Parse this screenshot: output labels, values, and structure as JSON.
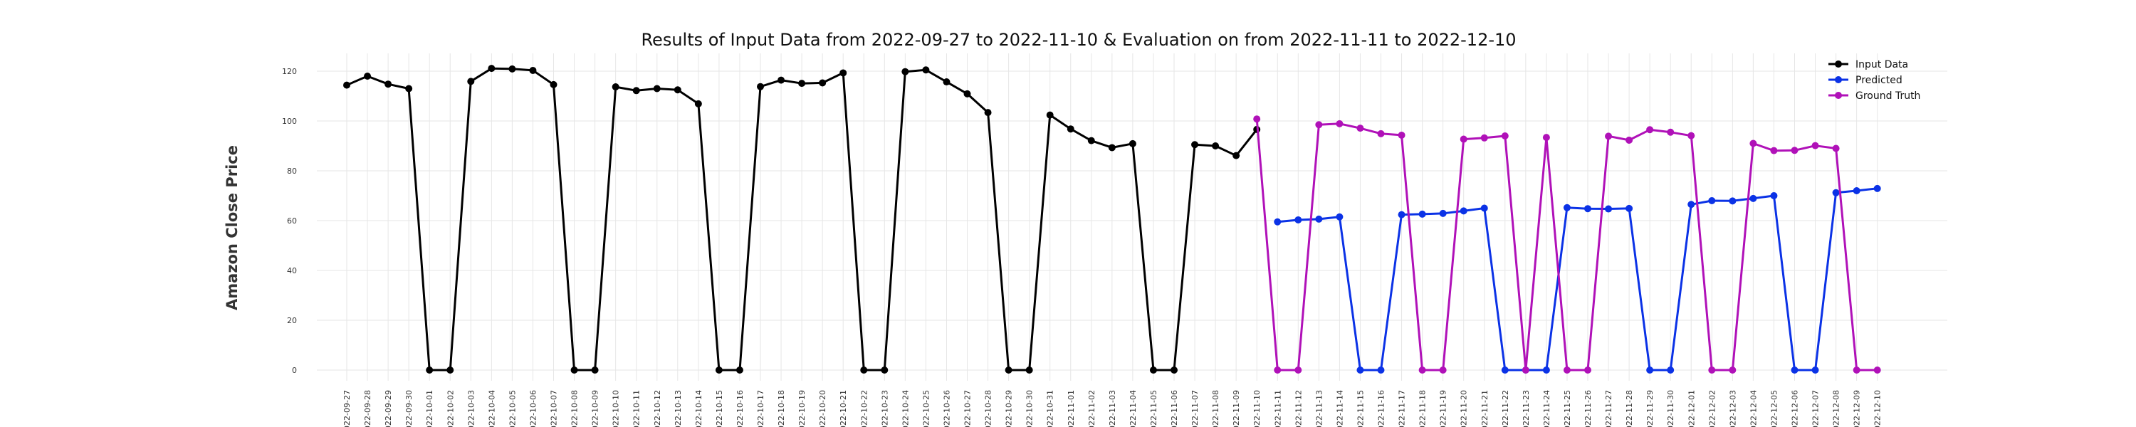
{
  "chart_data": {
    "type": "line",
    "title": "Results of Input Data from 2022-09-27 to 2022-11-10 & Evaluation on from 2022-11-11 to 2022-12-10",
    "ylabel": "Amazon Close Price",
    "xlabel": "",
    "ylim": [
      -5,
      127
    ],
    "yticks": [
      0,
      20,
      40,
      60,
      80,
      100,
      120
    ],
    "grid": true,
    "legend_position": "top-right",
    "dates": [
      "2022-09-27",
      "2022-09-28",
      "2022-09-29",
      "2022-09-30",
      "2022-10-01",
      "2022-10-02",
      "2022-10-03",
      "2022-10-04",
      "2022-10-05",
      "2022-10-06",
      "2022-10-07",
      "2022-10-08",
      "2022-10-09",
      "2022-10-10",
      "2022-10-11",
      "2022-10-12",
      "2022-10-13",
      "2022-10-14",
      "2022-10-15",
      "2022-10-16",
      "2022-10-17",
      "2022-10-18",
      "2022-10-19",
      "2022-10-20",
      "2022-10-21",
      "2022-10-22",
      "2022-10-23",
      "2022-10-24",
      "2022-10-25",
      "2022-10-26",
      "2022-10-27",
      "2022-10-28",
      "2022-10-29",
      "2022-10-30",
      "2022-10-31",
      "2022-11-01",
      "2022-11-02",
      "2022-11-03",
      "2022-11-04",
      "2022-11-05",
      "2022-11-06",
      "2022-11-07",
      "2022-11-08",
      "2022-11-09",
      "2022-11-10",
      "2022-11-11",
      "2022-11-12",
      "2022-11-13",
      "2022-11-14",
      "2022-11-15",
      "2022-11-16",
      "2022-11-17",
      "2022-11-18",
      "2022-11-19",
      "2022-11-20",
      "2022-11-21",
      "2022-11-22",
      "2022-11-23",
      "2022-11-24",
      "2022-11-25",
      "2022-11-26",
      "2022-11-27",
      "2022-11-28",
      "2022-11-29",
      "2022-11-30",
      "2022-12-01",
      "2022-12-02",
      "2022-12-03",
      "2022-12-04",
      "2022-12-05",
      "2022-12-06",
      "2022-12-07",
      "2022-12-08",
      "2022-12-09",
      "2022-12-10"
    ],
    "tick_labels": [
      "2022-09-27",
      "2022-09-28",
      "2022-09-29",
      "2022-09-30",
      "2022-10-01",
      "2022-10-02",
      "2022-10-03",
      "2022-10-04",
      "2022-10-05",
      "2022-10-06",
      "2022-10-07",
      "2022-10-08",
      "2022-10-09",
      "2022-10-10",
      "2022-10-11",
      "2022-10-12",
      "2022-10-13",
      "2022-10-14",
      "2022-10-15",
      "2022-10-16",
      "2022-10-17",
      "2022-10-18",
      "2022-10-19",
      "2022-10-20",
      "2022-10-21",
      "2022-10-22",
      "2022-10-23",
      "2022-10-24",
      "2022-10-25",
      "2022-10-26",
      "2022-10-27",
      "2022-10-28",
      "2022-10-29",
      "2022-10-30",
      "2022-10-31",
      "2022-11-01",
      "2022-11-02",
      "2022-11-03",
      "2022-11-04",
      "2022-11-05",
      "2022-11-06",
      "2022-11-07",
      "2022-11-08",
      "2022-11-09",
      "2022-11-10",
      "2022-11-11",
      "2022-11-12",
      "2022-11-13",
      "2022-11-14",
      "2022-11-15",
      "2022-11-16",
      "2022-11-17",
      "2022-11-18",
      "2022-11-19",
      "2022-11-20",
      "2022-11-21",
      "2022-11-22",
      "2022-11-23",
      "2022-11-24",
      "2022-11-25",
      "2022-11-26",
      "2022-11-27",
      "2022-11-28",
      "2022-11-29",
      "2022-11-30",
      "2022-12-01",
      "2022-12-02",
      "2022-12-03",
      "2022-12-04",
      "2022-12-05",
      "2022-12-06",
      "2022-12-07",
      "2022-12-08",
      "2022-12-09",
      "2022-12-10"
    ],
    "series": [
      {
        "name": "Input Data",
        "color": "#000000",
        "x": [
          "2022-09-27",
          "2022-09-28",
          "2022-09-29",
          "2022-09-30",
          "2022-10-01",
          "2022-10-02",
          "2022-10-03",
          "2022-10-04",
          "2022-10-05",
          "2022-10-06",
          "2022-10-07",
          "2022-10-08",
          "2022-10-09",
          "2022-10-10",
          "2022-10-11",
          "2022-10-12",
          "2022-10-13",
          "2022-10-14",
          "2022-10-15",
          "2022-10-16",
          "2022-10-17",
          "2022-10-18",
          "2022-10-19",
          "2022-10-20",
          "2022-10-21",
          "2022-10-22",
          "2022-10-23",
          "2022-10-24",
          "2022-10-25",
          "2022-10-26",
          "2022-10-27",
          "2022-10-28",
          "2022-10-29",
          "2022-10-30",
          "2022-10-31",
          "2022-11-01",
          "2022-11-02",
          "2022-11-03",
          "2022-11-04",
          "2022-11-05",
          "2022-11-06",
          "2022-11-07",
          "2022-11-08",
          "2022-11-09",
          "2022-11-10"
        ],
        "values": [
          114.4,
          118.0,
          114.8,
          113.0,
          0,
          0,
          115.9,
          121.1,
          120.9,
          120.3,
          114.6,
          0,
          0,
          113.7,
          112.2,
          113.0,
          112.5,
          106.9,
          0,
          0,
          113.8,
          116.4,
          115.1,
          115.3,
          119.3,
          0,
          0,
          119.8,
          120.5,
          115.7,
          110.9,
          103.4,
          0,
          0,
          102.4,
          96.8,
          92.1,
          89.3,
          90.9,
          0,
          0,
          90.5,
          90.0,
          86.1,
          96.6
        ]
      },
      {
        "name": "Predicted",
        "color": "#0b32e6",
        "x": [
          "2022-11-11",
          "2022-11-12",
          "2022-11-13",
          "2022-11-14",
          "2022-11-15",
          "2022-11-16",
          "2022-11-17",
          "2022-11-18",
          "2022-11-19",
          "2022-11-20",
          "2022-11-21",
          "2022-11-22",
          "2022-11-23",
          "2022-11-24",
          "2022-11-25",
          "2022-11-26",
          "2022-11-27",
          "2022-11-28",
          "2022-11-29",
          "2022-11-30",
          "2022-12-01",
          "2022-12-02",
          "2022-12-03",
          "2022-12-04",
          "2022-12-05",
          "2022-12-06",
          "2022-12-07",
          "2022-12-08",
          "2022-12-09",
          "2022-12-10"
        ],
        "values": [
          59.5,
          60.3,
          60.6,
          61.5,
          0,
          0,
          62.4,
          62.6,
          62.9,
          63.9,
          65.0,
          0,
          0,
          0,
          65.2,
          64.8,
          64.7,
          64.9,
          0,
          0,
          66.5,
          68.0,
          67.9,
          68.9,
          70.0,
          0,
          0,
          71.2,
          72.0,
          72.9
        ]
      },
      {
        "name": "Ground Truth",
        "color": "#b011b8",
        "x": [
          "2022-11-10",
          "2022-11-11",
          "2022-11-12",
          "2022-11-13",
          "2022-11-14",
          "2022-11-15",
          "2022-11-16",
          "2022-11-17",
          "2022-11-18",
          "2022-11-19",
          "2022-11-20",
          "2022-11-21",
          "2022-11-22",
          "2022-11-23",
          "2022-11-24",
          "2022-11-25",
          "2022-11-26",
          "2022-11-27",
          "2022-11-28",
          "2022-11-29",
          "2022-11-30",
          "2022-12-01",
          "2022-12-02",
          "2022-12-03",
          "2022-12-04",
          "2022-12-05",
          "2022-12-06",
          "2022-12-07",
          "2022-12-08",
          "2022-12-09",
          "2022-12-10"
        ],
        "values": [
          100.8,
          0,
          0,
          98.5,
          98.9,
          97.1,
          94.9,
          94.3,
          0,
          0,
          92.7,
          93.2,
          94.0,
          0,
          93.4,
          0,
          0,
          93.9,
          92.3,
          96.5,
          95.5,
          94.1,
          0,
          0,
          91.0,
          88.1,
          88.2,
          90.1,
          89.0,
          0,
          0
        ]
      }
    ]
  }
}
